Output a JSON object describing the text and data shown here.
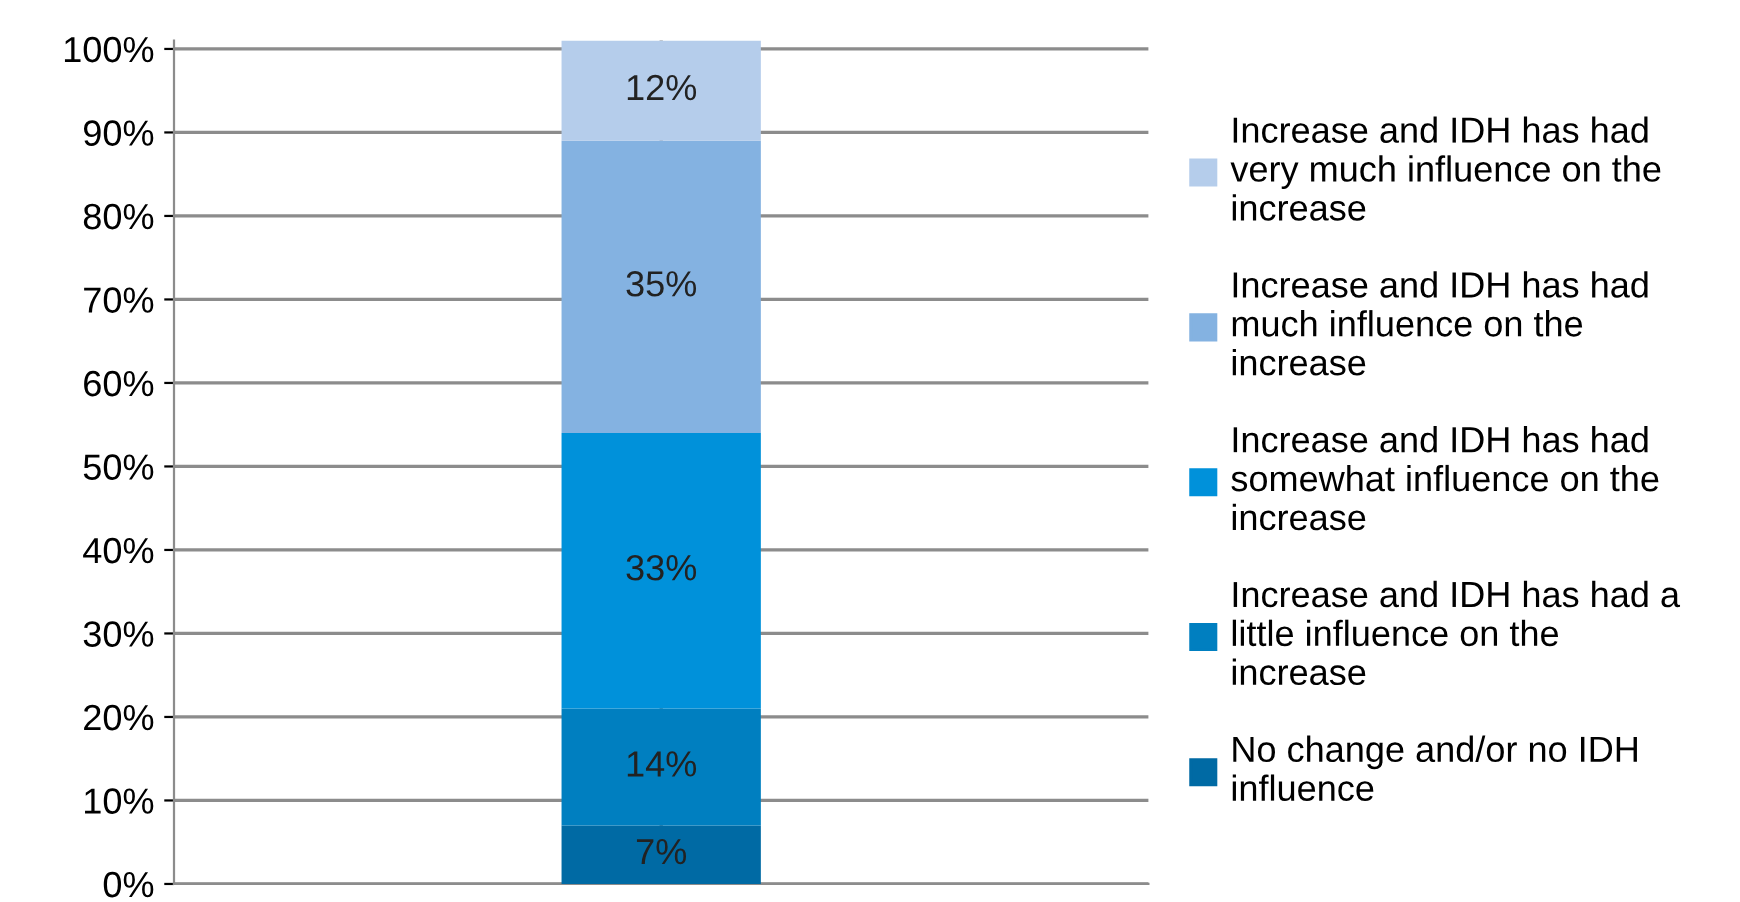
{
  "chart_data": {
    "type": "bar",
    "stacked": true,
    "categories": [
      null
    ],
    "series": [
      {
        "name": "No change and/or no IDH influence",
        "color": "#006aa4",
        "values": [
          7
        ]
      },
      {
        "name": "Increase and IDH has had a little influence on the increase",
        "color": "#007fc0",
        "values": [
          14
        ]
      },
      {
        "name": "Increase and IDH has had somewhat influence on the increase",
        "color": "#0091da",
        "values": [
          33
        ]
      },
      {
        "name": "Increase and IDH has had much influence on the increase",
        "color": "#84b2e1",
        "values": [
          35
        ]
      },
      {
        "name": "Increase and IDH has had very much influence on the increase",
        "color": "#b5cdeb",
        "values": [
          12
        ]
      }
    ],
    "value_labels": [
      "7%",
      "14%",
      "33%",
      "35%",
      "12%"
    ],
    "ylim": [
      0,
      101
    ],
    "yticks": [
      {
        "value": 0,
        "label": "0%"
      },
      {
        "value": 10,
        "label": "10%"
      },
      {
        "value": 20,
        "label": "20%"
      },
      {
        "value": 30,
        "label": "30%"
      },
      {
        "value": 40,
        "label": "40%"
      },
      {
        "value": 50,
        "label": "50%"
      },
      {
        "value": 60,
        "label": "60%"
      },
      {
        "value": 70,
        "label": "70%"
      },
      {
        "value": 80,
        "label": "80%"
      },
      {
        "value": 90,
        "label": "90%"
      },
      {
        "value": 100,
        "label": "100%"
      }
    ],
    "grid": "y",
    "legend": "right"
  }
}
